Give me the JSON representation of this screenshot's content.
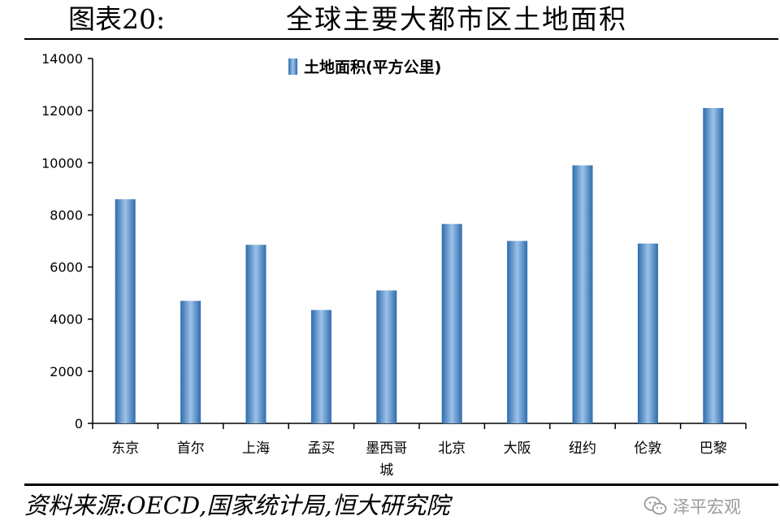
{
  "figure": {
    "label": "图表20:",
    "title": "全球主要大都市区土地面积",
    "source": "资料来源:OECD,国家统计局,恒大研究院"
  },
  "watermark": {
    "text": "泽平宏观",
    "icon": "wechat-icon"
  },
  "colors": {
    "bar_center": "#9cc2e8",
    "bar_edge": "#2e6cae",
    "axis": "#000000"
  },
  "chart_data": {
    "type": "bar",
    "title": "",
    "legend": {
      "label": "土地面积(平方公里)",
      "position": "top"
    },
    "categories": [
      "东京",
      "首尔",
      "上海",
      "孟买",
      "墨西哥城",
      "北京",
      "大阪",
      "纽约",
      "伦敦",
      "巴黎"
    ],
    "category_display": [
      [
        "东京"
      ],
      [
        "首尔"
      ],
      [
        "上海"
      ],
      [
        "孟买"
      ],
      [
        "墨西哥",
        "城"
      ],
      [
        "北京"
      ],
      [
        "大阪"
      ],
      [
        "纽约"
      ],
      [
        "伦敦"
      ],
      [
        "巴黎"
      ]
    ],
    "series": [
      {
        "name": "土地面积(平方公里)",
        "values": [
          8600,
          4700,
          6850,
          4350,
          5100,
          7650,
          7000,
          9900,
          6900,
          12100
        ]
      }
    ],
    "yticks": [
      "0",
      "2000",
      "4000",
      "6000",
      "8000",
      "10000",
      "12000",
      "14000"
    ],
    "ylim": [
      0,
      14000
    ],
    "xlabel": "",
    "ylabel": "",
    "grid": false
  }
}
